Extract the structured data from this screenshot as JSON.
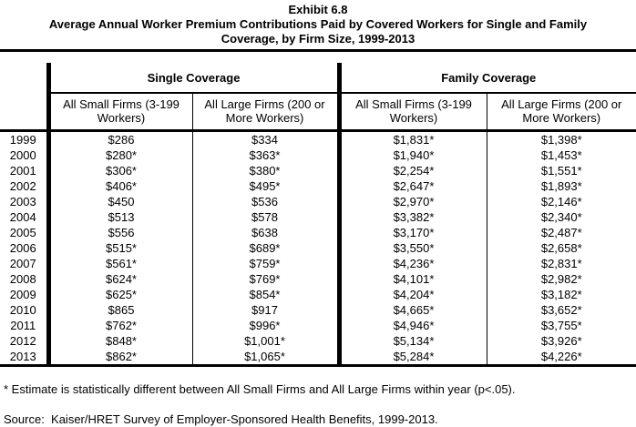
{
  "page": {
    "background": "#ffffff",
    "text_color": "#000000"
  },
  "title": {
    "exhibit_label": "Exhibit 6.8",
    "subtitle": "Average Annual Worker Premium Contributions Paid by Covered Workers for Single and Family Coverage, by Firm Size, 1999-2013"
  },
  "table": {
    "group_headers": [
      {
        "label": "Single Coverage"
      },
      {
        "label": "Family Coverage"
      }
    ],
    "column_headers": [
      "All Small Firms (3-199 Workers)",
      "All Large Firms (200 or More Workers)",
      "All Small Firms (3-199 Workers)",
      "All Large Firms (200 or More Workers)"
    ],
    "rows": [
      {
        "year": "1999",
        "values": [
          "$286",
          "$334",
          "$1,831*",
          "$1,398*"
        ]
      },
      {
        "year": "2000",
        "values": [
          "$280*",
          "$363*",
          "$1,940*",
          "$1,453*"
        ]
      },
      {
        "year": "2001",
        "values": [
          "$306*",
          "$380*",
          "$2,254*",
          "$1,551*"
        ]
      },
      {
        "year": "2002",
        "values": [
          "$406*",
          "$495*",
          "$2,647*",
          "$1,893*"
        ]
      },
      {
        "year": "2003",
        "values": [
          "$450",
          "$536",
          "$2,970*",
          "$2,146*"
        ]
      },
      {
        "year": "2004",
        "values": [
          "$513",
          "$578",
          "$3,382*",
          "$2,340*"
        ]
      },
      {
        "year": "2005",
        "values": [
          "$556",
          "$638",
          "$3,170*",
          "$2,487*"
        ]
      },
      {
        "year": "2006",
        "values": [
          "$515*",
          "$689*",
          "$3,550*",
          "$2,658*"
        ]
      },
      {
        "year": "2007",
        "values": [
          "$561*",
          "$759*",
          "$4,236*",
          "$2,831*"
        ]
      },
      {
        "year": "2008",
        "values": [
          "$624*",
          "$769*",
          "$4,101*",
          "$2,982*"
        ]
      },
      {
        "year": "2009",
        "values": [
          "$625*",
          "$854*",
          "$4,204*",
          "$3,182*"
        ]
      },
      {
        "year": "2010",
        "values": [
          "$865",
          "$917",
          "$4,665*",
          "$3,652*"
        ]
      },
      {
        "year": "2011",
        "values": [
          "$762*",
          "$996*",
          "$4,946*",
          "$3,755*"
        ]
      },
      {
        "year": "2012",
        "values": [
          "$848*",
          "$1,001*",
          "$5,134*",
          "$3,926*"
        ]
      },
      {
        "year": "2013",
        "values": [
          "$862*",
          "$1,065*",
          "$5,284*",
          "$4,226*"
        ]
      }
    ]
  },
  "footnotes": {
    "asterisk_note": "* Estimate is statistically different between All Small Firms and All Large Firms within year (p<.05).",
    "source": "Source:  Kaiser/HRET Survey of Employer-Sponsored Health Benefits, 1999-2013."
  },
  "chart_data": {
    "type": "table",
    "title": "Exhibit 6.8 - Average Annual Worker Premium Contributions Paid by Covered Workers for Single and Family Coverage, by Firm Size, 1999-2013",
    "categories": [
      "1999",
      "2000",
      "2001",
      "2002",
      "2003",
      "2004",
      "2005",
      "2006",
      "2007",
      "2008",
      "2009",
      "2010",
      "2011",
      "2012",
      "2013"
    ],
    "series": [
      {
        "name": "Single Coverage - All Small Firms (3-199 Workers)",
        "values": [
          286,
          280,
          306,
          406,
          450,
          513,
          556,
          515,
          561,
          624,
          625,
          865,
          762,
          848,
          862
        ],
        "significant": [
          false,
          true,
          true,
          true,
          false,
          false,
          false,
          true,
          true,
          true,
          true,
          false,
          true,
          true,
          true
        ]
      },
      {
        "name": "Single Coverage - All Large Firms (200 or More Workers)",
        "values": [
          334,
          363,
          380,
          495,
          536,
          578,
          638,
          689,
          759,
          769,
          854,
          917,
          996,
          1001,
          1065
        ],
        "significant": [
          false,
          true,
          true,
          true,
          false,
          false,
          false,
          true,
          true,
          true,
          true,
          false,
          true,
          true,
          true
        ]
      },
      {
        "name": "Family Coverage - All Small Firms (3-199 Workers)",
        "values": [
          1831,
          1940,
          2254,
          2647,
          2970,
          3382,
          3170,
          3550,
          4236,
          4101,
          4204,
          4665,
          4946,
          5134,
          5284
        ],
        "significant": [
          true,
          true,
          true,
          true,
          true,
          true,
          true,
          true,
          true,
          true,
          true,
          true,
          true,
          true,
          true
        ]
      },
      {
        "name": "Family Coverage - All Large Firms (200 or More Workers)",
        "values": [
          1398,
          1453,
          1551,
          1893,
          2146,
          2340,
          2487,
          2658,
          2831,
          2982,
          3182,
          3652,
          3755,
          3926,
          4226
        ],
        "significant": [
          true,
          true,
          true,
          true,
          true,
          true,
          true,
          true,
          true,
          true,
          true,
          true,
          true,
          true,
          true
        ]
      }
    ],
    "units": "USD per year",
    "significance_marker": "*",
    "footnote": "* Estimate is statistically different between All Small Firms and All Large Firms within year (p<.05).",
    "source": "Kaiser/HRET Survey of Employer-Sponsored Health Benefits, 1999-2013."
  }
}
